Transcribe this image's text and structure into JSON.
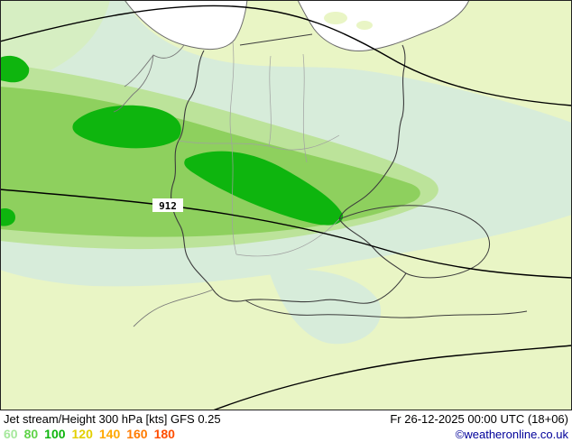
{
  "map": {
    "contour_label": "912",
    "colors": {
      "sea": "#ffffff",
      "land": "#e9f5c5",
      "band_60": "#d7ecda",
      "band_corner": "#d6eec2",
      "band_70": "#bce39a",
      "band_80": "#8ed05e",
      "band_100": "#0eb50e",
      "coast": "#6b6b6b",
      "border": "#3c3c3c",
      "state_border": "#a0a0a0",
      "neighbor_border": "#787878",
      "contour": "#000000",
      "label_bg": "#ffffff",
      "label_text": "#000000",
      "frame": "#222222"
    }
  },
  "footer": {
    "title": "Jet stream/Height 300 hPa [kts] GFS 0.25",
    "datetime": "Fr 26-12-2025 00:00 UTC (18+06)",
    "copyright": "©weatheronline.co.uk",
    "copyright_color": "#000099",
    "legend": [
      {
        "label": "60",
        "color": "#a6e89c"
      },
      {
        "label": "80",
        "color": "#5fd348"
      },
      {
        "label": "100",
        "color": "#0eb50e"
      },
      {
        "label": "120",
        "color": "#e3cf00"
      },
      {
        "label": "140",
        "color": "#ffa800"
      },
      {
        "label": "160",
        "color": "#ff7b00"
      },
      {
        "label": "180",
        "color": "#ff4d00"
      }
    ]
  }
}
